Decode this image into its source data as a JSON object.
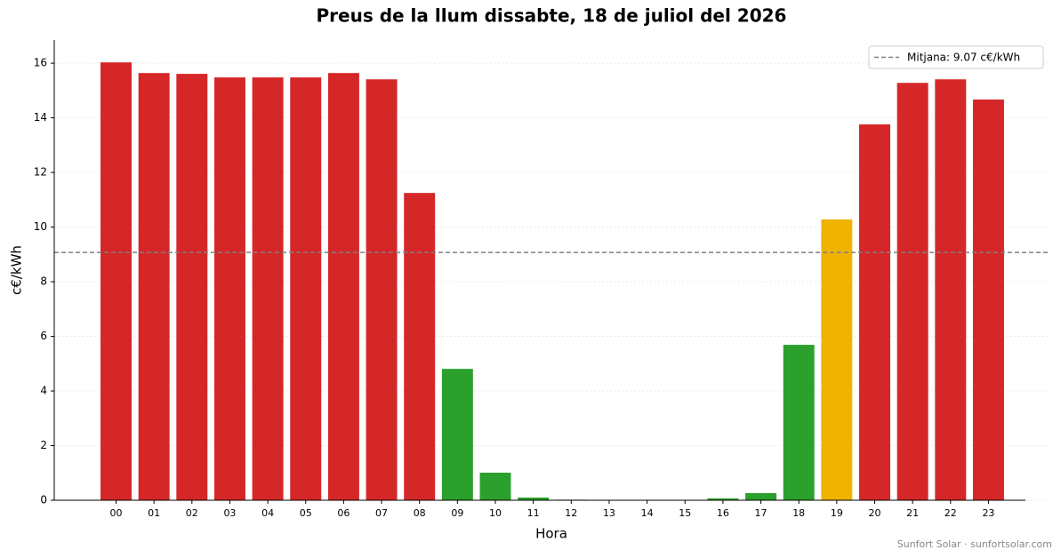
{
  "chart_data": {
    "type": "bar",
    "title": "Preus de la llum dissabte, 18 de juliol del 2026",
    "x_label": "Hora",
    "y_label": "c€/kWh",
    "categories": [
      "00",
      "01",
      "02",
      "03",
      "04",
      "05",
      "06",
      "07",
      "08",
      "09",
      "10",
      "11",
      "12",
      "13",
      "14",
      "15",
      "16",
      "17",
      "18",
      "19",
      "20",
      "21",
      "22",
      "23"
    ],
    "values": [
      16.03,
      15.64,
      15.61,
      15.48,
      15.48,
      15.48,
      15.64,
      15.41,
      11.25,
      4.81,
      1.01,
      0.1,
      0.02,
      0,
      0,
      0.01,
      0.07,
      0.26,
      5.69,
      10.28,
      13.76,
      15.28,
      15.41,
      14.67
    ],
    "colors": [
      "#d62728",
      "#d62728",
      "#d62728",
      "#d62728",
      "#d62728",
      "#d62728",
      "#d62728",
      "#d62728",
      "#d62728",
      "#2ca02c",
      "#2ca02c",
      "#2ca02c",
      "#2ca02c",
      "#2ca02c",
      "#2ca02c",
      "#2ca02c",
      "#2ca02c",
      "#2ca02c",
      "#2ca02c",
      "#f0b400",
      "#d62728",
      "#d62728",
      "#d62728",
      "#d62728"
    ],
    "mean": {
      "value": 9.07,
      "label": "Mitjana: 9.07 c€/kWh",
      "color": "#808080"
    },
    "ylim": [
      0,
      16.85
    ],
    "yticks": [
      0,
      2,
      4,
      6,
      8,
      10,
      12,
      14,
      16
    ],
    "grid": true,
    "legend": "upper right",
    "footer": "Sunfort Solar · sunfortsolar.com"
  }
}
